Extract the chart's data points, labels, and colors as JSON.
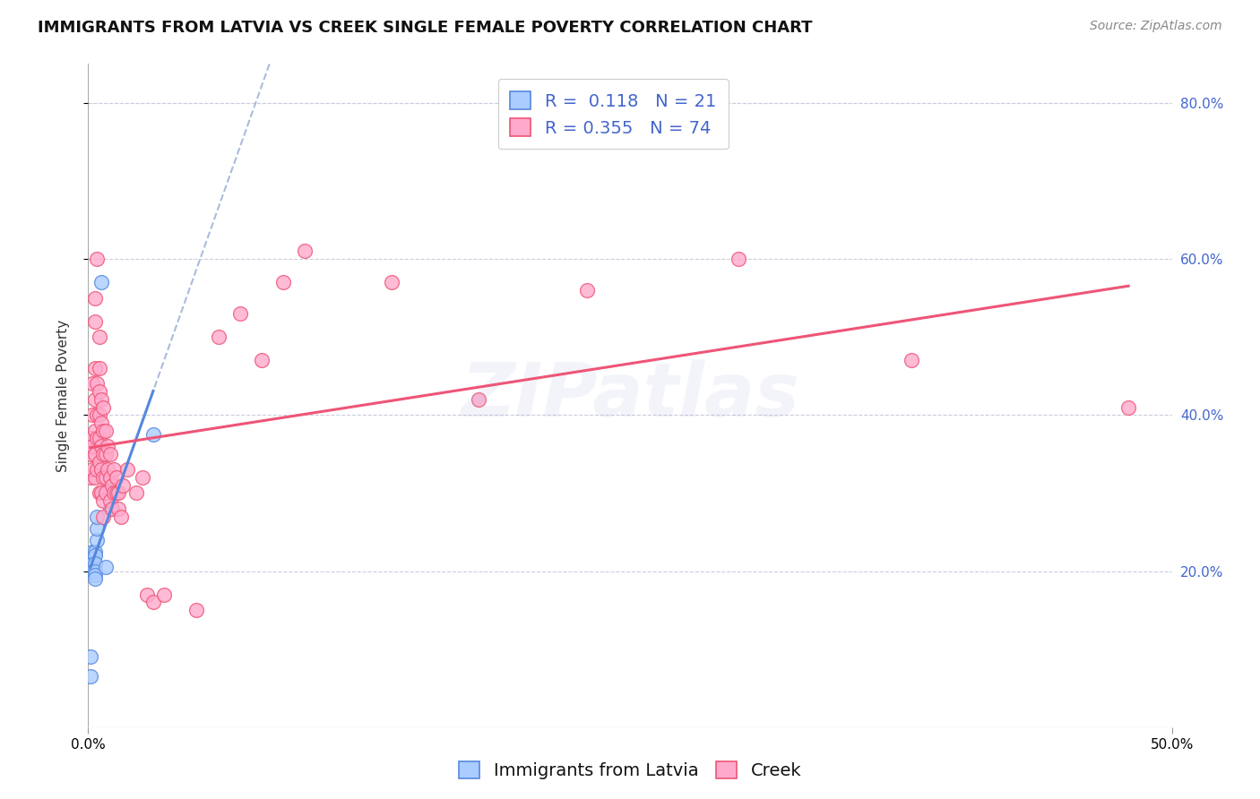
{
  "title": "IMMIGRANTS FROM LATVIA VS CREEK SINGLE FEMALE POVERTY CORRELATION CHART",
  "source": "Source: ZipAtlas.com",
  "ylabel": "Single Female Poverty",
  "background_color": "#ffffff",
  "grid_color": "#ccccdd",
  "watermark": "ZIPatlas",
  "legend_R1": "0.118",
  "legend_N1": "21",
  "legend_R2": "0.355",
  "legend_N2": "74",
  "color_latvia": "#aaccff",
  "color_creek": "#ffaacc",
  "color_text_blue": "#4466cc",
  "line_color_latvia": "#5588dd",
  "line_color_creek": "#ee5577",
  "dash_line_color": "#aabbdd",
  "xlim": [
    0.0,
    0.5
  ],
  "ylim": [
    0.0,
    0.85
  ],
  "ytick_vals": [
    0.2,
    0.4,
    0.6,
    0.8
  ],
  "title_fontsize": 13,
  "source_fontsize": 10,
  "axis_label_fontsize": 11,
  "tick_fontsize": 11,
  "legend_fontsize": 14,
  "watermark_fontsize": 60,
  "watermark_alpha": 0.1,
  "latvia_x": [
    0.001,
    0.001,
    0.002,
    0.002,
    0.002,
    0.002,
    0.002,
    0.003,
    0.003,
    0.003,
    0.003,
    0.003,
    0.003,
    0.004,
    0.004,
    0.004,
    0.006,
    0.008,
    0.01,
    0.01,
    0.03
  ],
  "latvia_y": [
    0.09,
    0.065,
    0.215,
    0.225,
    0.215,
    0.21,
    0.2,
    0.225,
    0.22,
    0.21,
    0.2,
    0.195,
    0.19,
    0.24,
    0.255,
    0.27,
    0.57,
    0.205,
    0.28,
    0.3,
    0.375
  ],
  "creek_x": [
    0.001,
    0.001,
    0.001,
    0.002,
    0.002,
    0.002,
    0.002,
    0.003,
    0.003,
    0.003,
    0.003,
    0.003,
    0.003,
    0.003,
    0.004,
    0.004,
    0.004,
    0.004,
    0.004,
    0.005,
    0.005,
    0.005,
    0.005,
    0.005,
    0.005,
    0.005,
    0.006,
    0.006,
    0.006,
    0.006,
    0.006,
    0.007,
    0.007,
    0.007,
    0.007,
    0.007,
    0.007,
    0.008,
    0.008,
    0.008,
    0.008,
    0.009,
    0.009,
    0.01,
    0.01,
    0.01,
    0.011,
    0.011,
    0.012,
    0.012,
    0.013,
    0.013,
    0.014,
    0.014,
    0.015,
    0.016,
    0.018,
    0.022,
    0.025,
    0.027,
    0.03,
    0.035,
    0.05,
    0.06,
    0.07,
    0.08,
    0.09,
    0.1,
    0.14,
    0.18,
    0.23,
    0.3,
    0.38,
    0.48
  ],
  "creek_y": [
    0.37,
    0.35,
    0.32,
    0.36,
    0.33,
    0.4,
    0.44,
    0.55,
    0.52,
    0.46,
    0.42,
    0.38,
    0.35,
    0.32,
    0.6,
    0.44,
    0.4,
    0.37,
    0.33,
    0.5,
    0.46,
    0.43,
    0.4,
    0.37,
    0.34,
    0.3,
    0.42,
    0.39,
    0.36,
    0.33,
    0.3,
    0.41,
    0.38,
    0.35,
    0.32,
    0.29,
    0.27,
    0.38,
    0.35,
    0.32,
    0.3,
    0.36,
    0.33,
    0.35,
    0.32,
    0.29,
    0.31,
    0.28,
    0.33,
    0.3,
    0.32,
    0.3,
    0.3,
    0.28,
    0.27,
    0.31,
    0.33,
    0.3,
    0.32,
    0.17,
    0.16,
    0.17,
    0.15,
    0.5,
    0.53,
    0.47,
    0.57,
    0.61,
    0.57,
    0.42,
    0.56,
    0.6,
    0.47,
    0.41
  ]
}
